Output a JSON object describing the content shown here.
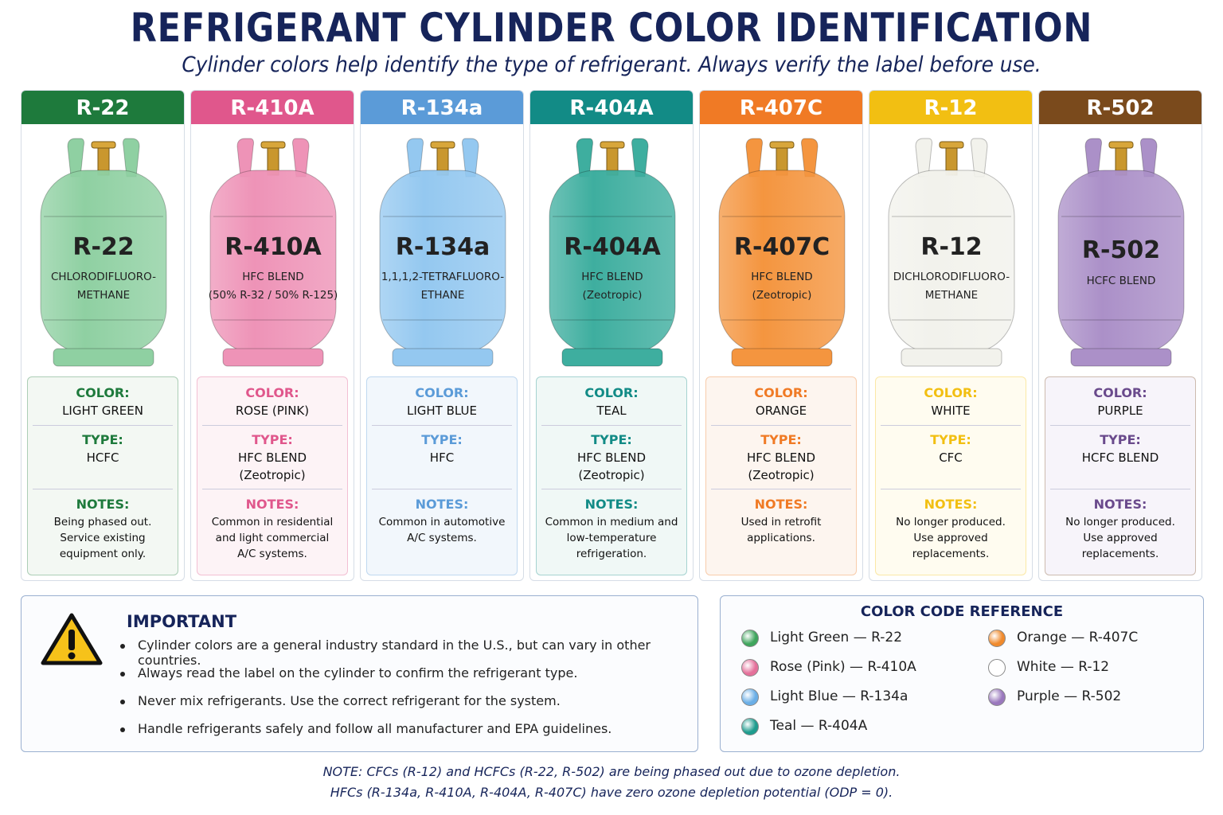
{
  "header": {
    "title": "REFRIGERANT CYLINDER COLOR IDENTIFICATION",
    "subtitle": "Cylinder colors help identify the type of refrigerant. Always verify the label before use."
  },
  "labels": {
    "color": "COLOR:",
    "type": "TYPE:",
    "notes": "NOTES:"
  },
  "cylinders": [
    {
      "name": "R-22",
      "accent": "#1e7a3c",
      "body": "#8fd0a2",
      "tint": "#f3f8f3",
      "cylinder_text": [
        "CHLORODIFLUORO-",
        "METHANE"
      ],
      "color": "LIGHT GREEN",
      "type": [
        "HCFC"
      ],
      "notes": [
        "Being phased out.",
        "Service existing",
        "equipment only."
      ]
    },
    {
      "name": "R-410A",
      "accent": "#e0578c",
      "body": "#ee93b7",
      "tint": "#fdf3f6",
      "cylinder_text": [
        "HFC BLEND",
        "(50% R-32 / 50% R-125)"
      ],
      "color": "ROSE (PINK)",
      "type": [
        "HFC BLEND",
        "(Zeotropic)"
      ],
      "notes": [
        "Common in residential",
        "and light commercial",
        "A/C systems."
      ]
    },
    {
      "name": "R-134a",
      "accent": "#5b9bd8",
      "body": "#94c8f0",
      "tint": "#f2f7fc",
      "cylinder_text": [
        "1,1,1,2-TETRAFLUORO-",
        "ETHANE"
      ],
      "color": "LIGHT BLUE",
      "type": [
        "HFC"
      ],
      "notes": [
        "Common in automotive",
        "A/C systems."
      ]
    },
    {
      "name": "R-404A",
      "accent": "#128b86",
      "body": "#3eae9f",
      "tint": "#f0f8f6",
      "cylinder_text": [
        "HFC BLEND",
        "(Zeotropic)"
      ],
      "color": "TEAL",
      "type": [
        "HFC BLEND",
        "(Zeotropic)"
      ],
      "notes": [
        "Common in medium and",
        "low-temperature",
        "refrigeration."
      ]
    },
    {
      "name": "R-407C",
      "accent": "#f07a25",
      "body": "#f4953f",
      "tint": "#fdf5ef",
      "cylinder_text": [
        "HFC BLEND",
        "(Zeotropic)"
      ],
      "color": "ORANGE",
      "type": [
        "HFC BLEND",
        "(Zeotropic)"
      ],
      "notes": [
        "Used in retrofit",
        "applications."
      ]
    },
    {
      "name": "R-12",
      "accent": "#f2bf12",
      "body": "#f2f2ec",
      "tint": "#fffcf0",
      "cylinder_text": [
        "DICHLORODIFLUORO-",
        "METHANE"
      ],
      "color": "WHITE",
      "type": [
        "CFC"
      ],
      "notes": [
        "No longer produced.",
        "Use approved",
        "replacements."
      ]
    },
    {
      "name": "R-502",
      "accent": "#7a4a1c",
      "body": "#ab90c8",
      "tint": "#f7f4fa",
      "cylinder_text": [
        "HCFC BLEND"
      ],
      "color": "PURPLE",
      "type": [
        "HCFC BLEND"
      ],
      "notes": [
        "No longer produced.",
        "Use approved",
        "replacements."
      ]
    }
  ],
  "important": {
    "title": "IMPORTANT",
    "bullets": [
      "Cylinder colors are a general industry standard in the U.S., but can vary in other countries.",
      "Always read the label on the cylinder to confirm the refrigerant type.",
      "Never mix refrigerants. Use the correct refrigerant for the system.",
      "Handle refrigerants safely and follow all manufacturer and EPA guidelines."
    ]
  },
  "reference": {
    "title": "COLOR CODE REFERENCE",
    "items": [
      {
        "text": "Light Green — R-22",
        "color": "#3fa55c"
      },
      {
        "text": "Rose (Pink) — R-410A",
        "color": "#e4709a"
      },
      {
        "text": "Light Blue — R-134a",
        "color": "#6aaee6"
      },
      {
        "text": "Teal — R-404A",
        "color": "#1e9c8e"
      },
      {
        "text": "Orange — R-407C",
        "color": "#f08a2c"
      },
      {
        "text": "White — R-12",
        "color": "#ffffff"
      },
      {
        "text": "Purple — R-502",
        "color": "#9a78bd"
      }
    ]
  },
  "note": [
    "NOTE: CFCs (R-12) and HCFCs (R-22, R-502) are being phased out due to ozone depletion.",
    "HFCs (R-134a, R-410A, R-404A, R-407C) have zero ozone depletion potential (ODP = 0)."
  ]
}
